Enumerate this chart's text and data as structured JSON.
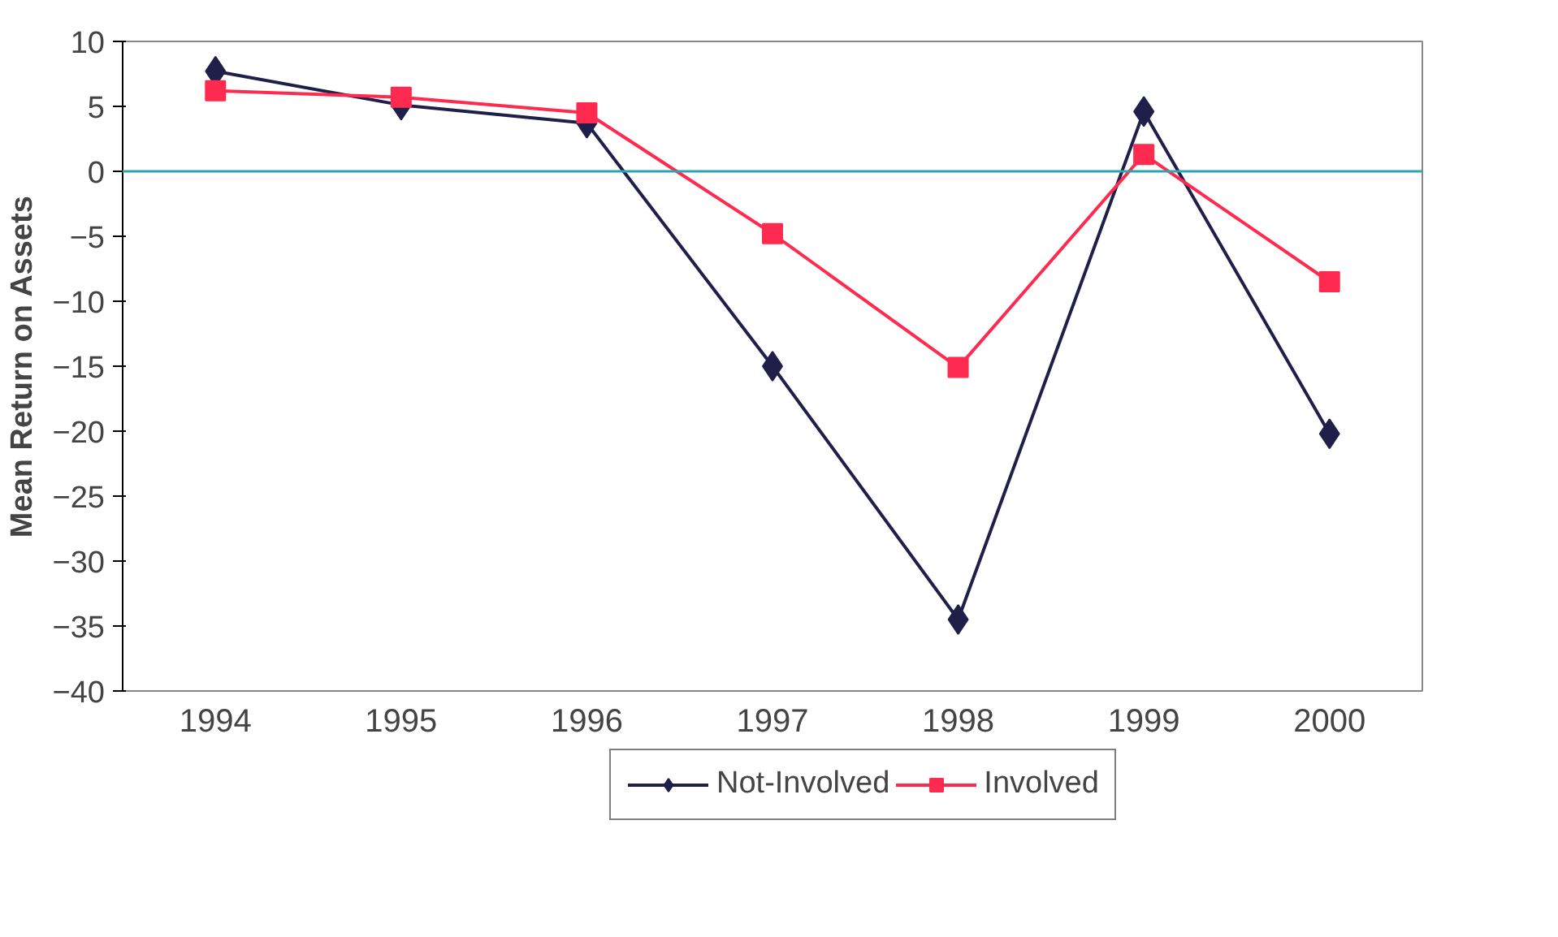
{
  "chart_data": {
    "type": "line",
    "ylabel": "Mean Return on Assets",
    "categories": [
      "1994",
      "1995",
      "1996",
      "1997",
      "1998",
      "1999",
      "2000"
    ],
    "ylim": [
      -40,
      10
    ],
    "yticks": [
      -40,
      -35,
      -30,
      -25,
      -20,
      -15,
      -10,
      -5,
      0,
      5,
      10
    ],
    "grid": false,
    "ref_lines": [
      {
        "axis": "y",
        "value": 0,
        "color": "#2aa6b0"
      }
    ],
    "legend": "bottom",
    "line_style": "solid",
    "series": [
      {
        "name": "Not-Involved",
        "color": "#1f1f4a",
        "marker": "diamond",
        "values": [
          7.7,
          5.1,
          3.7,
          -15,
          -34.5,
          4.6,
          -20.2
        ]
      },
      {
        "name": "Involved",
        "color": "#ff2a4f",
        "marker": "square",
        "values": [
          6.2,
          5.7,
          4.5,
          -4.8,
          -15.1,
          1.3,
          -8.5
        ]
      }
    ]
  }
}
